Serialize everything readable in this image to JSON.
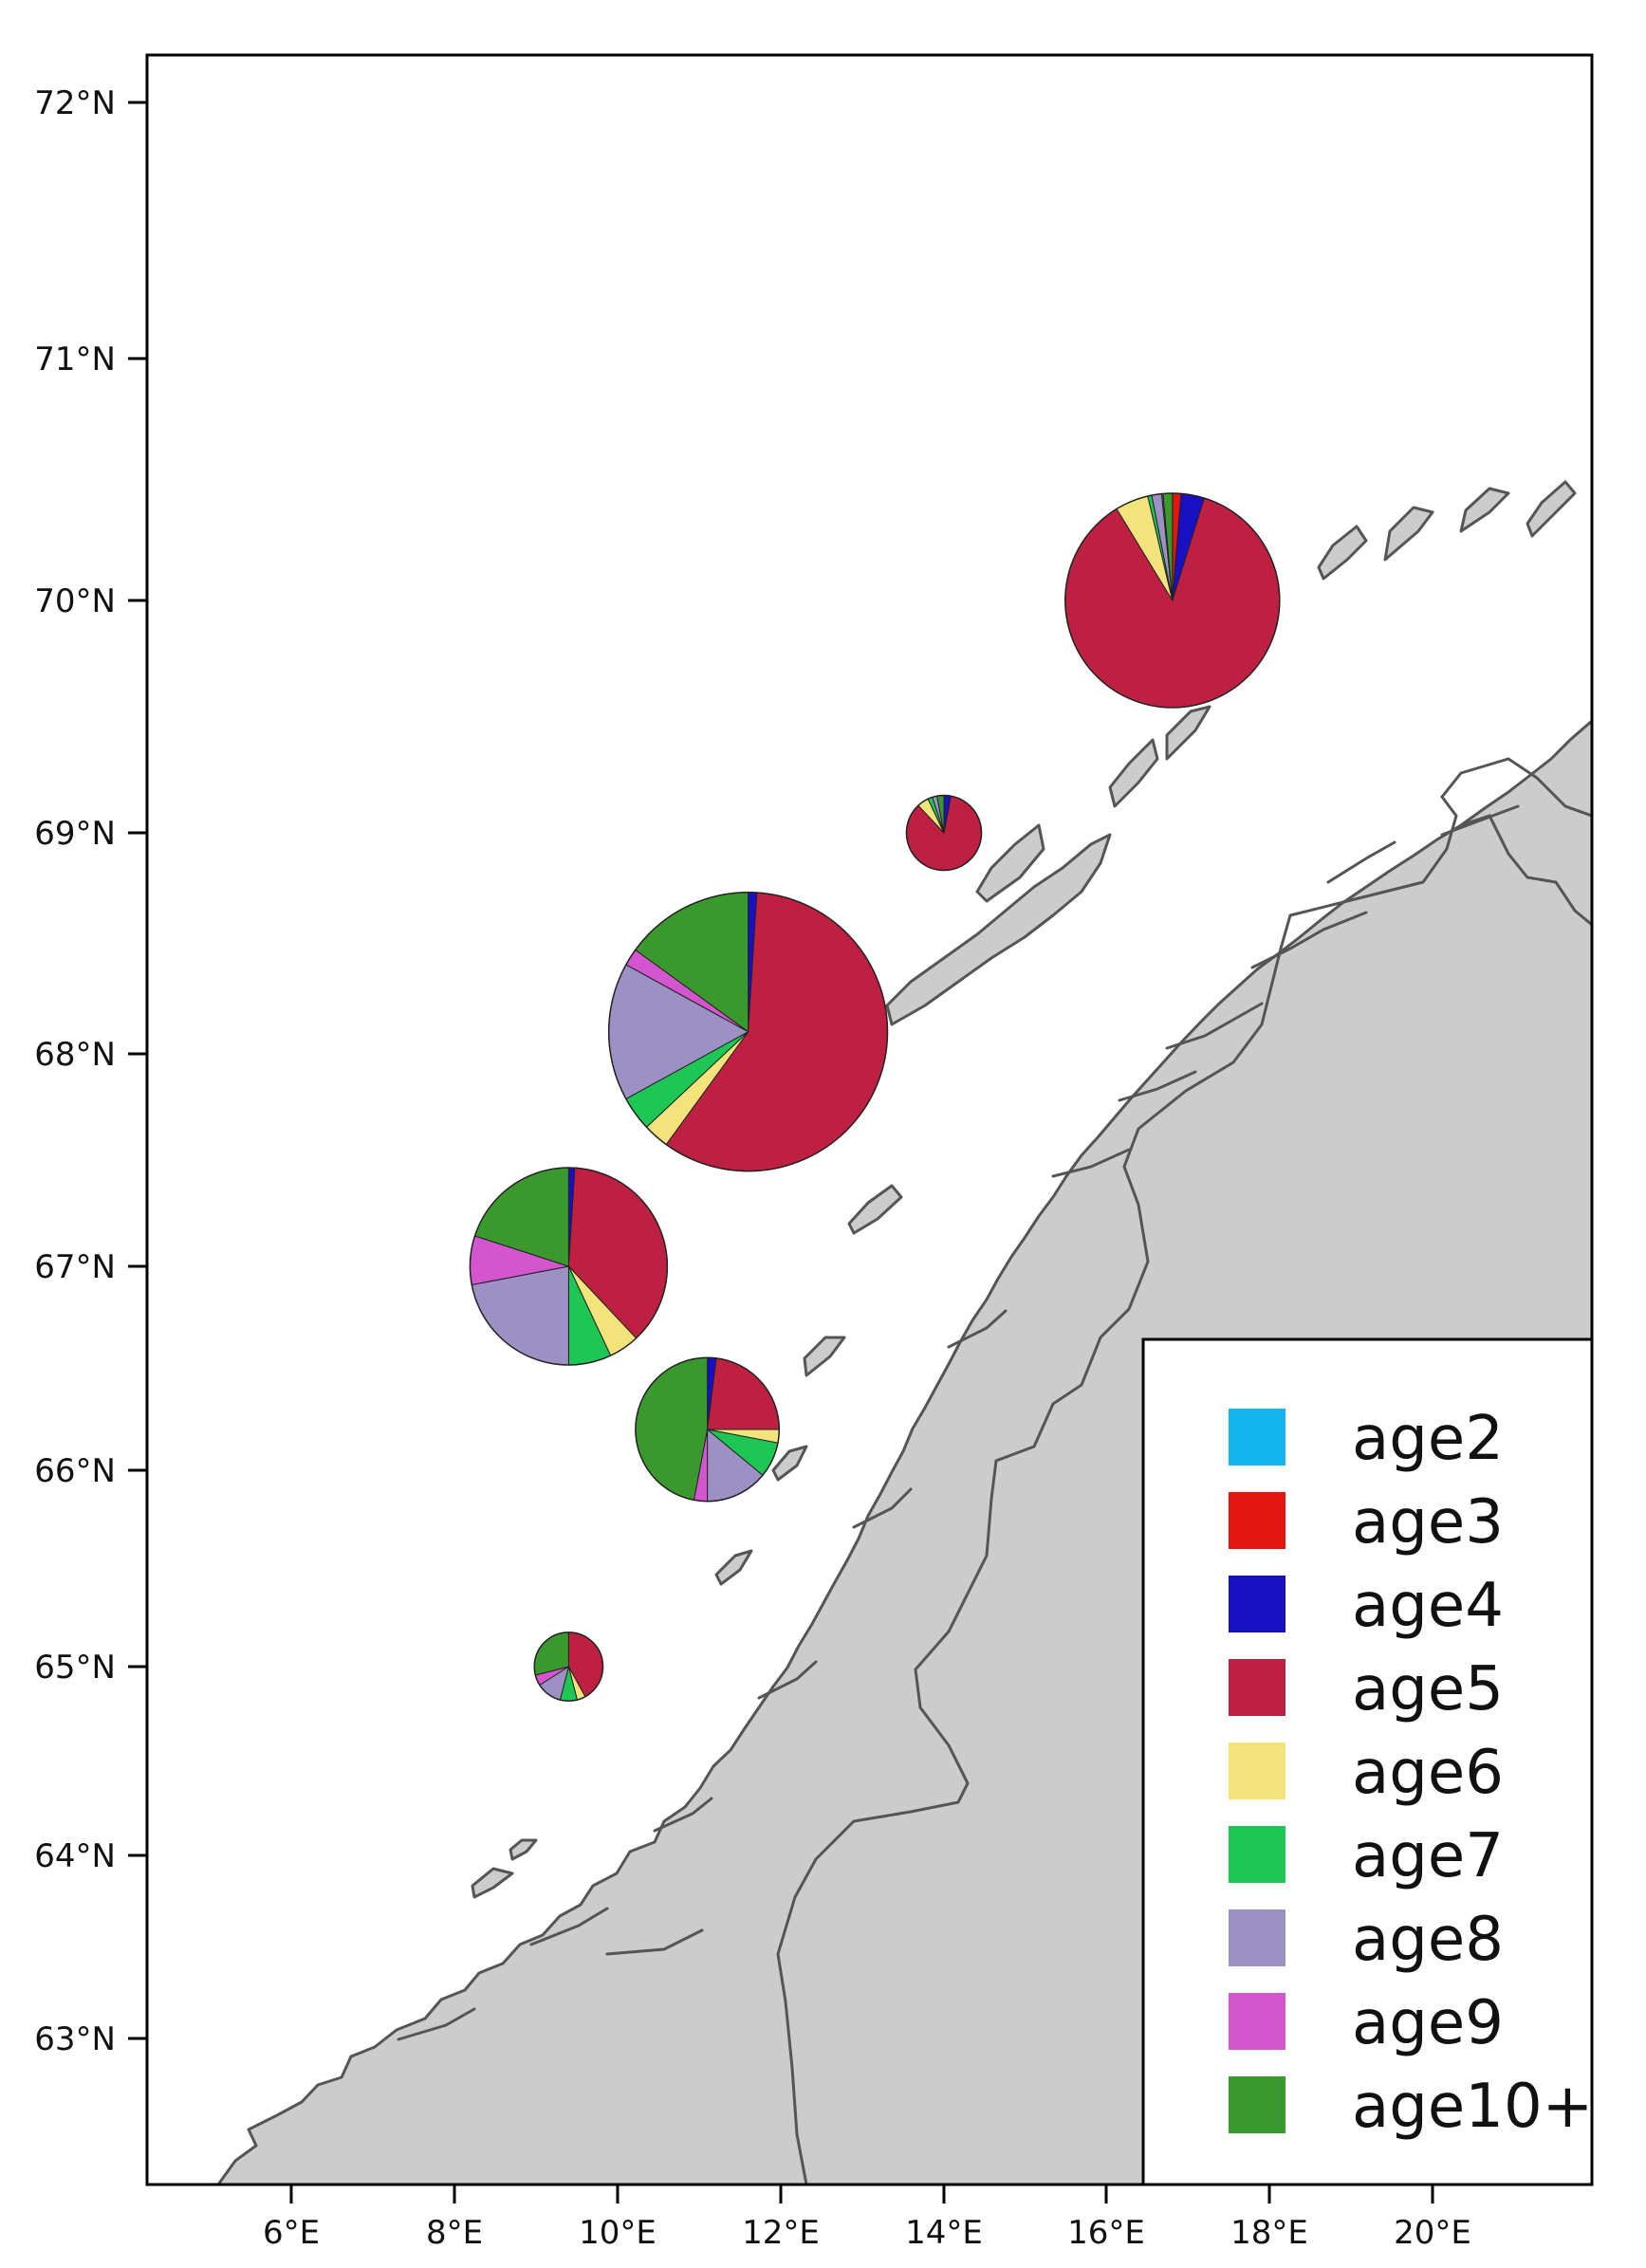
{
  "map": {
    "lat_ticks": [
      "72°N",
      "71°N",
      "70°N",
      "69°N",
      "68°N",
      "67°N",
      "66°N",
      "65°N",
      "64°N",
      "63°N"
    ],
    "lon_ticks": [
      "6°E",
      "8°E",
      "10°E",
      "12°E",
      "14°E",
      "16°E",
      "18°E",
      "20°E"
    ],
    "lon_range": [
      4.3,
      21.9
    ],
    "lat_range": [
      62.3,
      72.2
    ],
    "land_color": "#cccccc",
    "coast_color": "#555555"
  },
  "legend": {
    "items": [
      {
        "label": "age2",
        "color": "#13b5ee"
      },
      {
        "label": "age3",
        "color": "#e2160f"
      },
      {
        "label": "age4",
        "color": "#1710c4"
      },
      {
        "label": "age5",
        "color": "#be2042"
      },
      {
        "label": "age6",
        "color": "#f2e47a"
      },
      {
        "label": "age7",
        "color": "#1ec754"
      },
      {
        "label": "age8",
        "color": "#9c90c4"
      },
      {
        "label": "age9",
        "color": "#d456cf"
      },
      {
        "label": "age10+",
        "color": "#3a992d"
      }
    ]
  },
  "chart_data": {
    "type": "pie",
    "categories": [
      "age2",
      "age3",
      "age4",
      "age5",
      "age6",
      "age7",
      "age8",
      "age9",
      "age10+"
    ],
    "pies": [
      {
        "lon": 16.8,
        "lat": 70.0,
        "relative_size": 1.0,
        "values": [
          0.0,
          0.013,
          0.035,
          0.865,
          0.05,
          0.006,
          0.015,
          0.002,
          0.014
        ]
      },
      {
        "lon": 14.0,
        "lat": 69.0,
        "relative_size": 0.35,
        "values": [
          0.0,
          0.0,
          0.03,
          0.85,
          0.05,
          0.02,
          0.02,
          0.0,
          0.03
        ]
      },
      {
        "lon": 11.6,
        "lat": 68.1,
        "relative_size": 1.3,
        "values": [
          0.0,
          0.0,
          0.01,
          0.59,
          0.03,
          0.04,
          0.16,
          0.02,
          0.15
        ]
      },
      {
        "lon": 9.4,
        "lat": 67.0,
        "relative_size": 0.92,
        "values": [
          0.0,
          0.0,
          0.01,
          0.37,
          0.05,
          0.07,
          0.22,
          0.08,
          0.2
        ]
      },
      {
        "lon": 11.1,
        "lat": 66.2,
        "relative_size": 0.67,
        "values": [
          0.0,
          0.0,
          0.02,
          0.23,
          0.03,
          0.08,
          0.14,
          0.03,
          0.47
        ]
      },
      {
        "lon": 9.4,
        "lat": 65.0,
        "relative_size": 0.32,
        "values": [
          0.0,
          0.0,
          0.0,
          0.42,
          0.04,
          0.08,
          0.12,
          0.05,
          0.29
        ]
      }
    ]
  }
}
